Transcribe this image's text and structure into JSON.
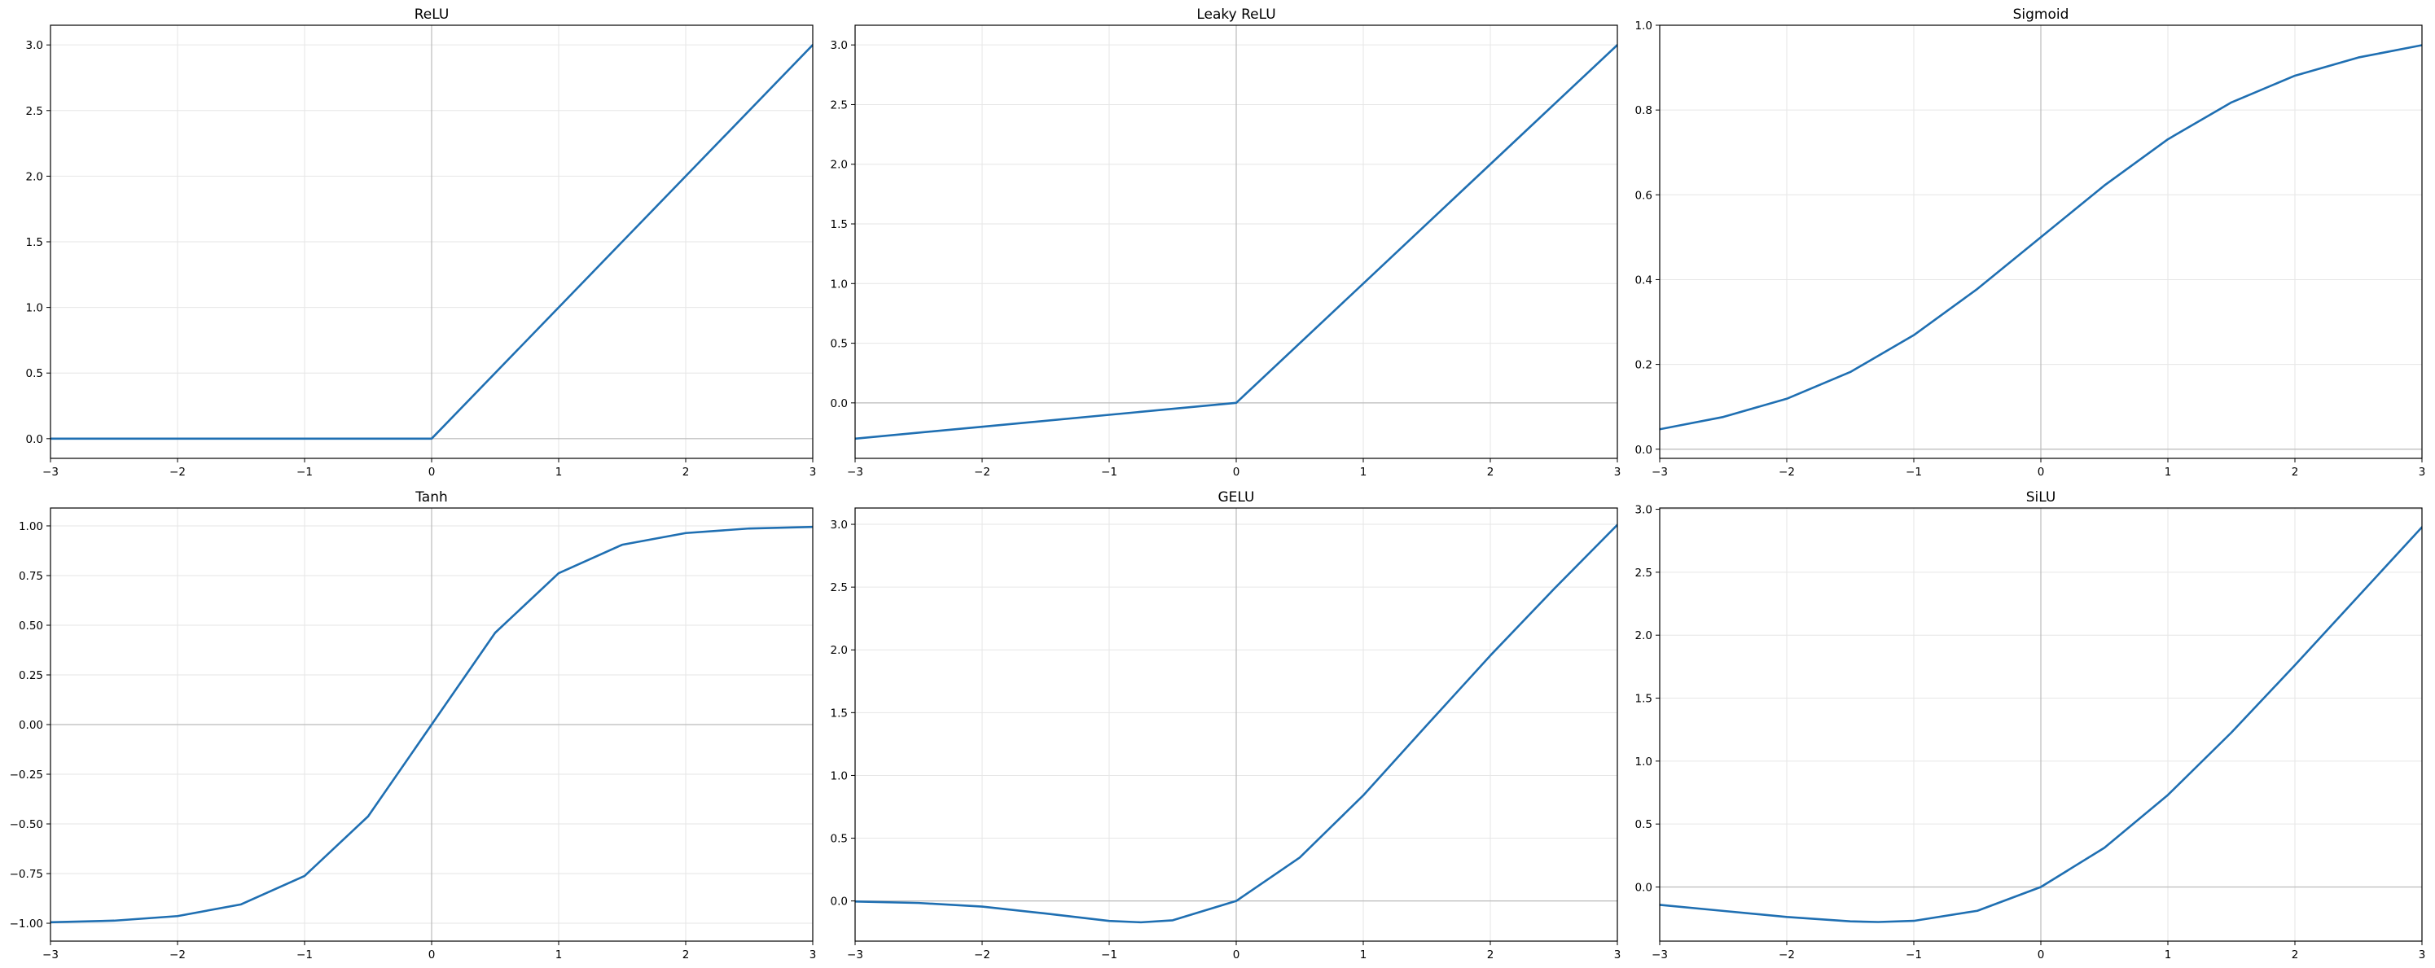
{
  "chart_data": [
    {
      "type": "line",
      "title": "ReLU",
      "xlabel": "",
      "ylabel": "",
      "xlim": [
        -3,
        3
      ],
      "ylim": [
        -0.15,
        3.15
      ],
      "xticks": [
        -3,
        -2,
        -1,
        0,
        1,
        2,
        3
      ],
      "xtick_labels": [
        "−3",
        "−2",
        "−1",
        "0",
        "1",
        "2",
        "3"
      ],
      "yticks": [
        0,
        0.5,
        1,
        1.5,
        2,
        2.5,
        3
      ],
      "ytick_labels": [
        "0.0",
        "0.5",
        "1.0",
        "1.5",
        "2.0",
        "2.5",
        "3.0"
      ],
      "grid": true,
      "series": [
        {
          "x": [
            -3,
            -2,
            -1,
            0,
            1,
            2,
            3
          ],
          "y": [
            0,
            0,
            0,
            0,
            1,
            2,
            3
          ]
        }
      ]
    },
    {
      "type": "line",
      "title": "Leaky ReLU",
      "xlabel": "",
      "ylabel": "",
      "xlim": [
        -3,
        3
      ],
      "ylim": [
        -0.465,
        3.165
      ],
      "xticks": [
        -3,
        -2,
        -1,
        0,
        1,
        2,
        3
      ],
      "xtick_labels": [
        "−3",
        "−2",
        "−1",
        "0",
        "1",
        "2",
        "3"
      ],
      "yticks": [
        0,
        0.5,
        1,
        1.5,
        2,
        2.5,
        3
      ],
      "ytick_labels": [
        "0.0",
        "0.5",
        "1.0",
        "1.5",
        "2.0",
        "2.5",
        "3.0"
      ],
      "grid": true,
      "series": [
        {
          "x": [
            -3,
            -2,
            -1,
            0,
            1,
            2,
            3
          ],
          "y": [
            -0.3,
            -0.2,
            -0.1,
            0,
            1,
            2,
            3
          ]
        }
      ]
    },
    {
      "type": "line",
      "title": "Sigmoid",
      "xlabel": "",
      "ylabel": "",
      "xlim": [
        -3,
        3
      ],
      "ylim": [
        -0.0216,
        1.0
      ],
      "xticks": [
        -3,
        -2,
        -1,
        0,
        1,
        2,
        3
      ],
      "xtick_labels": [
        "−3",
        "−2",
        "−1",
        "0",
        "1",
        "2",
        "3"
      ],
      "yticks": [
        0,
        0.2,
        0.4,
        0.6,
        0.8,
        1.0
      ],
      "ytick_labels": [
        "0.0",
        "0.2",
        "0.4",
        "0.6",
        "0.8",
        "1.0"
      ],
      "grid": true,
      "series": [
        {
          "x": [
            -3,
            -2.5,
            -2,
            -1.5,
            -1,
            -0.5,
            0,
            0.5,
            1,
            1.5,
            2,
            2.5,
            3
          ],
          "y": [
            0.047,
            0.076,
            0.119,
            0.182,
            0.269,
            0.378,
            0.5,
            0.622,
            0.731,
            0.818,
            0.881,
            0.924,
            0.953
          ]
        }
      ]
    },
    {
      "type": "line",
      "title": "Tanh",
      "xlabel": "",
      "ylabel": "",
      "xlim": [
        -3,
        3
      ],
      "ylim": [
        -1.09,
        1.09
      ],
      "xticks": [
        -3,
        -2,
        -1,
        0,
        1,
        2,
        3
      ],
      "xtick_labels": [
        "−3",
        "−2",
        "−1",
        "0",
        "1",
        "2",
        "3"
      ],
      "yticks": [
        -1,
        -0.75,
        -0.5,
        -0.25,
        0,
        0.25,
        0.5,
        0.75,
        1
      ],
      "ytick_labels": [
        "−1.00",
        "−0.75",
        "−0.50",
        "−0.25",
        "0.00",
        "0.25",
        "0.50",
        "0.75",
        "1.00"
      ],
      "grid": true,
      "series": [
        {
          "x": [
            -3,
            -2.5,
            -2,
            -1.5,
            -1,
            -0.5,
            0,
            0.5,
            1,
            1.5,
            2,
            2.5,
            3
          ],
          "y": [
            -0.995,
            -0.987,
            -0.964,
            -0.905,
            -0.762,
            -0.462,
            0,
            0.462,
            0.762,
            0.905,
            0.964,
            0.987,
            0.995
          ]
        }
      ]
    },
    {
      "type": "line",
      "title": "GELU",
      "xlabel": "",
      "ylabel": "",
      "xlim": [
        -3,
        3
      ],
      "ylim": [
        -0.32,
        3.13
      ],
      "xticks": [
        -3,
        -2,
        -1,
        0,
        1,
        2,
        3
      ],
      "xtick_labels": [
        "−3",
        "−2",
        "−1",
        "0",
        "1",
        "2",
        "3"
      ],
      "yticks": [
        0,
        0.5,
        1,
        1.5,
        2,
        2.5,
        3
      ],
      "ytick_labels": [
        "0.0",
        "0.5",
        "1.0",
        "1.5",
        "2.0",
        "2.5",
        "3.0"
      ],
      "grid": true,
      "series": [
        {
          "x": [
            -3,
            -2.5,
            -2,
            -1.5,
            -1,
            -0.75,
            -0.5,
            0,
            0.5,
            1,
            1.5,
            2,
            2.5,
            3
          ],
          "y": [
            -0.004,
            -0.016,
            -0.045,
            -0.1,
            -0.159,
            -0.17,
            -0.154,
            0,
            0.346,
            0.841,
            1.4,
            1.955,
            2.484,
            2.996
          ]
        }
      ]
    },
    {
      "type": "line",
      "title": "SiLU",
      "xlabel": "",
      "ylabel": "",
      "xlim": [
        -3,
        3
      ],
      "ylim": [
        -0.43,
        3.01
      ],
      "xticks": [
        -3,
        -2,
        -1,
        0,
        1,
        2,
        3
      ],
      "xtick_labels": [
        "−3",
        "−2",
        "−1",
        "0",
        "1",
        "2",
        "3"
      ],
      "yticks": [
        0,
        0.5,
        1,
        1.5,
        2,
        2.5,
        3
      ],
      "ytick_labels": [
        "0.0",
        "0.5",
        "1.0",
        "1.5",
        "2.0",
        "2.5",
        "3.0"
      ],
      "grid": true,
      "series": [
        {
          "x": [
            -3,
            -2.5,
            -2,
            -1.5,
            -1.28,
            -1,
            -0.5,
            0,
            0.5,
            1,
            1.5,
            2,
            2.5,
            3
          ],
          "y": [
            -0.142,
            -0.19,
            -0.238,
            -0.273,
            -0.278,
            -0.269,
            -0.189,
            0,
            0.311,
            0.731,
            1.227,
            1.762,
            2.31,
            2.858
          ]
        }
      ]
    }
  ],
  "colors": {
    "line": "#1f6fb2",
    "grid": "#e6e6e6",
    "zero_line": "#bbbbbb",
    "spine": "#000000"
  }
}
